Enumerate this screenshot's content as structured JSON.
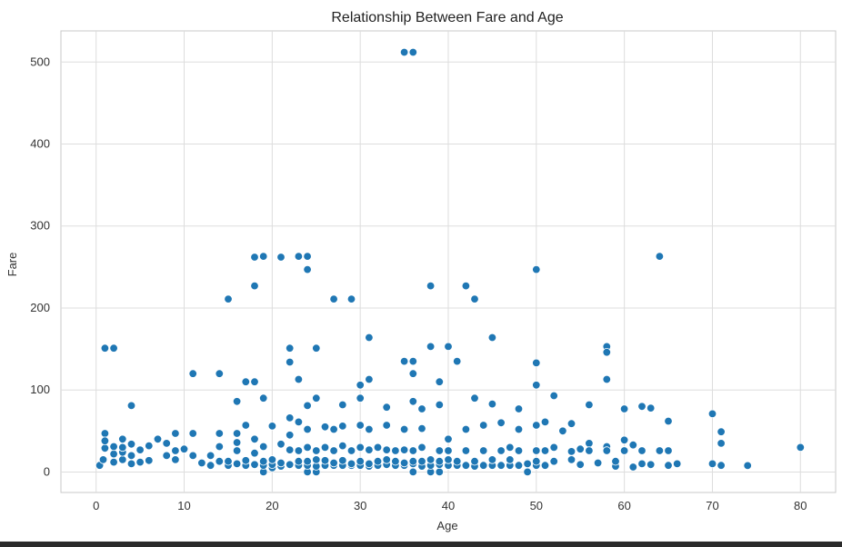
{
  "chart_data": {
    "type": "scatter",
    "title": "Relationship Between Fare and Age",
    "xlabel": "Age",
    "ylabel": "Fare",
    "xlim": [
      -4,
      84
    ],
    "ylim": [
      -25,
      538
    ],
    "xticks": [
      0,
      10,
      20,
      30,
      40,
      50,
      60,
      70,
      80
    ],
    "yticks": [
      0,
      100,
      200,
      300,
      400,
      500
    ],
    "grid": true,
    "point_color": "#1f77b4",
    "series": [
      {
        "points": [
          [
            35,
            512
          ],
          [
            36,
            512
          ],
          [
            18,
            262
          ],
          [
            19,
            263
          ],
          [
            21,
            262
          ],
          [
            23,
            263
          ],
          [
            24,
            263
          ],
          [
            64,
            263
          ],
          [
            24,
            247
          ],
          [
            50,
            247
          ],
          [
            18,
            227
          ],
          [
            38,
            227
          ],
          [
            42,
            227
          ],
          [
            15,
            211
          ],
          [
            27,
            211
          ],
          [
            29,
            211
          ],
          [
            43,
            211
          ],
          [
            31,
            164
          ],
          [
            45,
            164
          ],
          [
            1,
            151
          ],
          [
            2,
            151
          ],
          [
            22,
            151
          ],
          [
            25,
            151
          ],
          [
            38,
            153
          ],
          [
            40,
            153
          ],
          [
            58,
            153
          ],
          [
            58,
            146
          ],
          [
            35,
            135
          ],
          [
            36,
            135
          ],
          [
            41,
            135
          ],
          [
            22,
            134
          ],
          [
            50,
            133
          ],
          [
            11,
            120
          ],
          [
            14,
            120
          ],
          [
            36,
            120
          ],
          [
            17,
            110
          ],
          [
            18,
            110
          ],
          [
            30,
            106
          ],
          [
            39,
            110
          ],
          [
            50,
            106
          ],
          [
            23,
            113
          ],
          [
            31,
            113
          ],
          [
            58,
            113
          ],
          [
            4,
            81
          ],
          [
            16,
            86
          ],
          [
            19,
            90
          ],
          [
            24,
            81
          ],
          [
            25,
            90
          ],
          [
            28,
            82
          ],
          [
            30,
            90
          ],
          [
            33,
            79
          ],
          [
            36,
            86
          ],
          [
            37,
            77
          ],
          [
            39,
            82
          ],
          [
            43,
            90
          ],
          [
            45,
            83
          ],
          [
            48,
            77
          ],
          [
            52,
            93
          ],
          [
            56,
            82
          ],
          [
            60,
            77
          ],
          [
            62,
            80
          ],
          [
            63,
            78
          ],
          [
            70,
            71
          ],
          [
            1,
            47
          ],
          [
            3,
            40
          ],
          [
            7,
            40
          ],
          [
            9,
            47
          ],
          [
            11,
            47
          ],
          [
            14,
            47
          ],
          [
            17,
            57
          ],
          [
            20,
            56
          ],
          [
            22,
            66
          ],
          [
            23,
            61
          ],
          [
            26,
            55
          ],
          [
            28,
            56
          ],
          [
            30,
            57
          ],
          [
            31,
            52
          ],
          [
            33,
            57
          ],
          [
            35,
            52
          ],
          [
            37,
            53
          ],
          [
            40,
            40
          ],
          [
            42,
            52
          ],
          [
            44,
            57
          ],
          [
            46,
            60
          ],
          [
            48,
            52
          ],
          [
            50,
            57
          ],
          [
            51,
            61
          ],
          [
            53,
            50
          ],
          [
            54,
            59
          ],
          [
            56,
            35
          ],
          [
            58,
            31
          ],
          [
            60,
            39
          ],
          [
            61,
            33
          ],
          [
            65,
            62
          ],
          [
            71,
            49
          ],
          [
            71,
            35
          ],
          [
            80,
            30
          ],
          [
            0.4,
            8
          ],
          [
            0.8,
            15
          ],
          [
            1,
            29
          ],
          [
            1,
            38
          ],
          [
            2,
            12
          ],
          [
            2,
            22
          ],
          [
            2,
            31
          ],
          [
            3,
            15
          ],
          [
            3,
            24
          ],
          [
            3,
            30
          ],
          [
            4,
            10
          ],
          [
            4,
            20
          ],
          [
            4,
            34
          ],
          [
            5,
            12
          ],
          [
            5,
            27
          ],
          [
            6,
            14
          ],
          [
            6,
            32
          ],
          [
            8,
            20
          ],
          [
            8,
            35
          ],
          [
            9,
            15
          ],
          [
            9,
            26
          ],
          [
            10,
            28
          ],
          [
            11,
            20
          ],
          [
            12,
            11
          ],
          [
            13,
            8
          ],
          [
            13,
            20
          ],
          [
            14,
            13
          ],
          [
            14,
            31
          ],
          [
            15,
            8
          ],
          [
            15,
            13
          ],
          [
            16,
            10
          ],
          [
            16,
            26
          ],
          [
            16,
            36
          ],
          [
            16,
            47
          ],
          [
            17,
            8
          ],
          [
            17,
            14
          ],
          [
            18,
            9
          ],
          [
            18,
            23
          ],
          [
            18,
            40
          ],
          [
            19,
            0
          ],
          [
            19,
            8
          ],
          [
            19,
            13
          ],
          [
            19,
            31
          ],
          [
            20,
            5
          ],
          [
            20,
            9
          ],
          [
            20,
            15
          ],
          [
            21,
            7
          ],
          [
            21,
            11
          ],
          [
            21,
            34
          ],
          [
            22,
            9
          ],
          [
            22,
            27
          ],
          [
            22,
            45
          ],
          [
            23,
            8
          ],
          [
            23,
            13
          ],
          [
            23,
            26
          ],
          [
            24,
            0
          ],
          [
            24,
            8
          ],
          [
            24,
            13
          ],
          [
            24,
            30
          ],
          [
            24,
            52
          ],
          [
            25,
            0
          ],
          [
            25,
            7
          ],
          [
            25,
            15
          ],
          [
            25,
            26
          ],
          [
            26,
            8
          ],
          [
            26,
            14
          ],
          [
            26,
            30
          ],
          [
            27,
            8
          ],
          [
            27,
            11
          ],
          [
            27,
            26
          ],
          [
            27,
            52
          ],
          [
            28,
            8
          ],
          [
            28,
            14
          ],
          [
            28,
            32
          ],
          [
            29,
            8
          ],
          [
            29,
            10
          ],
          [
            29,
            26
          ],
          [
            30,
            8
          ],
          [
            30,
            13
          ],
          [
            30,
            30
          ],
          [
            31,
            7
          ],
          [
            31,
            10
          ],
          [
            31,
            27
          ],
          [
            32,
            8
          ],
          [
            32,
            13
          ],
          [
            32,
            30
          ],
          [
            33,
            9
          ],
          [
            33,
            15
          ],
          [
            33,
            27
          ],
          [
            34,
            8
          ],
          [
            34,
            13
          ],
          [
            34,
            26
          ],
          [
            35,
            8
          ],
          [
            35,
            11
          ],
          [
            35,
            27
          ],
          [
            36,
            0
          ],
          [
            36,
            10
          ],
          [
            36,
            13
          ],
          [
            36,
            26
          ],
          [
            37,
            7
          ],
          [
            37,
            13
          ],
          [
            37,
            30
          ],
          [
            38,
            0
          ],
          [
            38,
            8
          ],
          [
            38,
            15
          ],
          [
            39,
            0
          ],
          [
            39,
            9
          ],
          [
            39,
            13
          ],
          [
            39,
            26
          ],
          [
            40,
            8
          ],
          [
            40,
            15
          ],
          [
            40,
            26
          ],
          [
            41,
            8
          ],
          [
            41,
            13
          ],
          [
            42,
            8
          ],
          [
            42,
            26
          ],
          [
            43,
            7
          ],
          [
            43,
            13
          ],
          [
            44,
            8
          ],
          [
            44,
            26
          ],
          [
            45,
            8
          ],
          [
            45,
            15
          ],
          [
            46,
            8
          ],
          [
            46,
            26
          ],
          [
            47,
            8
          ],
          [
            47,
            15
          ],
          [
            47,
            30
          ],
          [
            48,
            8
          ],
          [
            48,
            26
          ],
          [
            49,
            0
          ],
          [
            49,
            10
          ],
          [
            50,
            8
          ],
          [
            50,
            13
          ],
          [
            50,
            26
          ],
          [
            51,
            8
          ],
          [
            51,
            26
          ],
          [
            52,
            13
          ],
          [
            52,
            30
          ],
          [
            54,
            15
          ],
          [
            54,
            25
          ],
          [
            55,
            9
          ],
          [
            55,
            28
          ],
          [
            56,
            26
          ],
          [
            57,
            11
          ],
          [
            58,
            26
          ],
          [
            59,
            7
          ],
          [
            59,
            13
          ],
          [
            60,
            26
          ],
          [
            61,
            6
          ],
          [
            62,
            26
          ],
          [
            62,
            10
          ],
          [
            63,
            9
          ],
          [
            64,
            26
          ],
          [
            65,
            8
          ],
          [
            65,
            26
          ],
          [
            66,
            10
          ],
          [
            70,
            10
          ],
          [
            71,
            8
          ],
          [
            74,
            7.8
          ]
        ]
      }
    ]
  }
}
